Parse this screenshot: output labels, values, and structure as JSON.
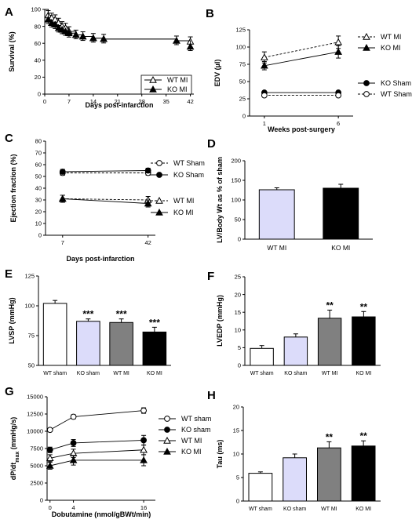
{
  "chart_data": [
    {
      "panel": "A",
      "type": "line",
      "xlabel": "Days post-infarction",
      "ylabel": "Survival (%)",
      "xlim": [
        0,
        43
      ],
      "ylim": [
        0,
        100
      ],
      "xticks": [
        0,
        7,
        14,
        21,
        28,
        35,
        42
      ],
      "yticks": [
        0,
        20,
        40,
        60,
        80,
        100
      ],
      "legend_position": "bottom-right",
      "series": [
        {
          "name": "WT MI",
          "marker": "open-triangle",
          "line": "solid",
          "x": [
            0,
            1,
            2,
            3,
            4,
            5,
            6,
            7,
            9,
            11,
            14,
            17,
            38,
            42
          ],
          "y": [
            100,
            93,
            90,
            88,
            84,
            80,
            78,
            74,
            70,
            68,
            66,
            65,
            63,
            62
          ]
        },
        {
          "name": "KO MI",
          "marker": "filled-triangle",
          "line": "solid",
          "x": [
            0,
            1,
            2,
            3,
            4,
            5,
            6,
            7,
            9,
            11,
            14,
            17,
            38,
            42
          ],
          "y": [
            100,
            88,
            84,
            82,
            78,
            76,
            74,
            72,
            70,
            68,
            66,
            65,
            63,
            56
          ]
        }
      ]
    },
    {
      "panel": "B",
      "type": "line",
      "xlabel": "Weeks post-surgery",
      "ylabel": "EDV (µl)",
      "xlim": [
        0,
        7
      ],
      "ylim": [
        0,
        125
      ],
      "xticks": [
        1,
        6
      ],
      "yticks": [
        0,
        25,
        50,
        75,
        100,
        125
      ],
      "legend_position": "right",
      "categories": [
        1,
        6
      ],
      "series": [
        {
          "name": "WT MI",
          "marker": "open-triangle",
          "line": "dashed",
          "values": [
            85,
            107
          ],
          "errors": [
            8,
            9
          ]
        },
        {
          "name": "KO MI",
          "marker": "filled-triangle",
          "line": "solid",
          "values": [
            73,
            93
          ],
          "errors": [
            6,
            9
          ]
        },
        {
          "name": "KO Sham",
          "marker": "filled-circle",
          "line": "solid",
          "values": [
            34,
            34
          ],
          "errors": [
            2,
            2
          ]
        },
        {
          "name": "WT Sham",
          "marker": "open-circle",
          "line": "dashed",
          "values": [
            30,
            30
          ],
          "errors": [
            2,
            2
          ]
        }
      ]
    },
    {
      "panel": "C",
      "type": "line",
      "xlabel": "Days post-infarction",
      "ylabel": "Ejection fraction (%)",
      "xlim": [
        0,
        45
      ],
      "ylim": [
        0,
        80
      ],
      "xticks": [
        7,
        42
      ],
      "yticks": [
        0,
        10,
        20,
        30,
        40,
        50,
        60,
        70,
        80
      ],
      "legend_position": "right",
      "categories": [
        7,
        42
      ],
      "series": [
        {
          "name": "WT Sham",
          "marker": "open-circle",
          "line": "dashed",
          "values": [
            53,
            53
          ],
          "errors": [
            2,
            2
          ]
        },
        {
          "name": "KO Sham",
          "marker": "filled-circle",
          "line": "solid",
          "values": [
            54,
            55
          ],
          "errors": [
            2,
            2
          ]
        },
        {
          "name": "WT MI",
          "marker": "open-triangle",
          "line": "dashed",
          "values": [
            31,
            30
          ],
          "errors": [
            3,
            3
          ]
        },
        {
          "name": "KO MI",
          "marker": "filled-triangle",
          "line": "solid",
          "values": [
            31,
            27
          ],
          "errors": [
            3,
            3
          ]
        }
      ]
    },
    {
      "panel": "D",
      "type": "bar",
      "xlabel": "",
      "ylabel": "LV/Body Wt as % of sham",
      "ylim": [
        0,
        200
      ],
      "yticks": [
        0,
        50,
        100,
        150,
        200
      ],
      "categories": [
        "WT MI",
        "KO MI"
      ],
      "values": [
        126,
        130
      ],
      "errors": [
        5,
        10
      ],
      "colors": [
        "#dcdcfa",
        "#000000"
      ]
    },
    {
      "panel": "E",
      "type": "bar",
      "xlabel": "",
      "ylabel": "LVSP (mmHg)",
      "ylim": [
        50,
        125
      ],
      "yticks": [
        50,
        75,
        100,
        125
      ],
      "categories": [
        "WT sham",
        "KO sham",
        "WT MI",
        "KO MI"
      ],
      "values": [
        102,
        87,
        86,
        78
      ],
      "errors": [
        2.5,
        2,
        3,
        4
      ],
      "significance": [
        "",
        "***",
        "***",
        "***"
      ],
      "colors": [
        "#ffffff",
        "#dcdcfa",
        "#808080",
        "#000000"
      ]
    },
    {
      "panel": "F",
      "type": "bar",
      "xlabel": "",
      "ylabel": "LVEDP (mmHg)",
      "ylim": [
        0,
        25
      ],
      "yticks": [
        0,
        5,
        10,
        15,
        20,
        25
      ],
      "categories": [
        "WT sham",
        "KO sham",
        "WT MI",
        "KO MI"
      ],
      "values": [
        4.8,
        8,
        13.3,
        13.7
      ],
      "errors": [
        0.8,
        0.9,
        2.3,
        1.5
      ],
      "significance": [
        "",
        "",
        "**",
        "**"
      ],
      "colors": [
        "#ffffff",
        "#dcdcfa",
        "#808080",
        "#000000"
      ]
    },
    {
      "panel": "G",
      "type": "line",
      "xlabel": "Dobutamine (nmol/gBWt/min)",
      "ylabel": "dP/dt",
      "ylabel_sub": "max",
      "ylabel_unit": "(mmHg/s)",
      "xlim": [
        -0.5,
        18
      ],
      "ylim": [
        0,
        15000
      ],
      "xticks": [
        0,
        4,
        16
      ],
      "yticks": [
        0,
        2500,
        5000,
        7500,
        10000,
        12500,
        15000
      ],
      "legend_position": "right",
      "categories": [
        0,
        4,
        16
      ],
      "series": [
        {
          "name": "WT sham",
          "marker": "open-circle",
          "values": [
            10200,
            12100,
            13000
          ],
          "errors": [
            200,
            300,
            400
          ]
        },
        {
          "name": "KO sham",
          "marker": "filled-circle",
          "values": [
            7300,
            8300,
            8700
          ],
          "errors": [
            400,
            500,
            700
          ]
        },
        {
          "name": "WT MI",
          "marker": "open-triangle",
          "values": [
            6100,
            6800,
            7300
          ],
          "errors": [
            500,
            600,
            700
          ]
        },
        {
          "name": "KO MI",
          "marker": "filled-triangle",
          "values": [
            5000,
            5800,
            5800
          ],
          "errors": [
            500,
            700,
            800
          ]
        }
      ]
    },
    {
      "panel": "H",
      "type": "bar",
      "xlabel": "",
      "ylabel": "Tau (ms)",
      "ylim": [
        0,
        20
      ],
      "yticks": [
        0,
        5,
        10,
        15,
        20
      ],
      "categories": [
        "WT sham",
        "KO sham",
        "WT MI",
        "KO MI"
      ],
      "values": [
        5.9,
        9.2,
        11.3,
        11.7
      ],
      "errors": [
        0.3,
        0.8,
        1.3,
        1.1
      ],
      "significance": [
        "",
        "",
        "**",
        "**"
      ],
      "colors": [
        "#ffffff",
        "#dcdcfa",
        "#808080",
        "#000000"
      ]
    }
  ]
}
